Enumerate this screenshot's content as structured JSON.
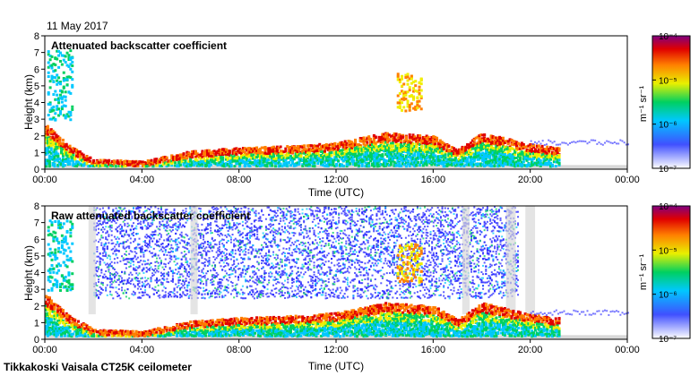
{
  "date_label": "11 May 2017",
  "instrument_label": "Tikkakoski Vaisala CT25K ceilometer",
  "chart_data": [
    {
      "type": "heatmap",
      "title": "Attenuated backscatter coefficient",
      "xlabel": "Time (UTC)",
      "ylabel": "Height (km)",
      "x_ticks": [
        "00:00",
        "04:00",
        "08:00",
        "12:00",
        "16:00",
        "20:00",
        "00:00"
      ],
      "y_ticks": [
        "0",
        "1",
        "2",
        "3",
        "4",
        "5",
        "6",
        "7",
        "8"
      ],
      "xlim_hours": [
        0,
        24
      ],
      "ylim_km": [
        0,
        8
      ],
      "colorbar": {
        "scale": "log",
        "unit": "m⁻¹ sr⁻¹",
        "tick_labels": [
          "10⁻⁷",
          "10⁻⁶",
          "10⁻⁵",
          "10⁻⁴"
        ],
        "range": [
          1e-07,
          0.0001
        ]
      },
      "features": [
        {
          "description": "boundary layer top",
          "hours": [
            0,
            1,
            2,
            4,
            6,
            8,
            10,
            12,
            14,
            16,
            17,
            18,
            20,
            21
          ],
          "height_km": [
            2.5,
            1.2,
            0.4,
            0.3,
            0.9,
            1.1,
            1.2,
            1.4,
            2.0,
            1.8,
            1.0,
            2.0,
            1.3,
            1.1
          ]
        },
        {
          "description": "mid-level cloud",
          "hours": [
            14.5,
            15.5
          ],
          "height_km": [
            5.8,
            5.5
          ]
        }
      ]
    },
    {
      "type": "heatmap",
      "title": "Raw attenuated backscatter coefficient",
      "xlabel": "Time (UTC)",
      "ylabel": "Height (km)",
      "x_ticks": [
        "00:00",
        "04:00",
        "08:00",
        "12:00",
        "16:00",
        "20:00",
        "00:00"
      ],
      "y_ticks": [
        "0",
        "1",
        "2",
        "3",
        "4",
        "5",
        "6",
        "7",
        "8"
      ],
      "xlim_hours": [
        0,
        24
      ],
      "ylim_km": [
        0,
        8
      ],
      "colorbar": {
        "scale": "log",
        "unit": "m⁻¹ sr⁻¹",
        "tick_labels": [
          "10⁻⁷",
          "10⁻⁶",
          "10⁻⁵",
          "10⁻⁴"
        ],
        "range": [
          1e-07,
          0.0001
        ]
      },
      "features": [
        {
          "description": "daytime noise",
          "hours": [
            2,
            19.5
          ],
          "height_km": [
            0,
            8
          ]
        }
      ]
    }
  ],
  "colors": {
    "noise": "#d8d8d8",
    "scale": [
      "#ffffff",
      "#2020ff",
      "#00c8ff",
      "#00d060",
      "#f0f000",
      "#ff8000",
      "#e00000",
      "#800080"
    ]
  }
}
